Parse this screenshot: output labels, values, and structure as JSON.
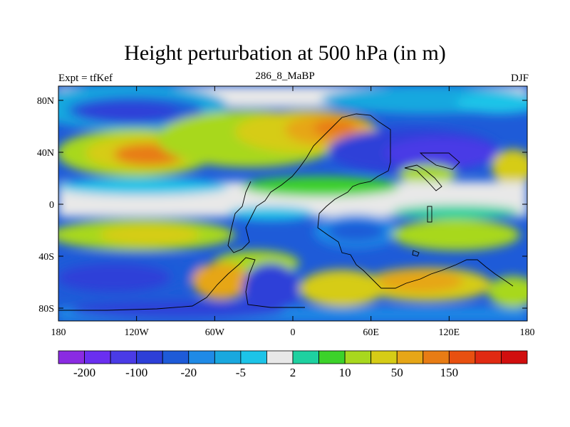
{
  "title": "Height perturbation at 500 hPa (in m)",
  "subtitle_left": "Expt = tfKef",
  "subtitle_center": "286_8_MaBP",
  "subtitle_right": "DJF",
  "map": {
    "lon_ticks": [
      "180",
      "120W",
      "60W",
      "0",
      "60E",
      "120E",
      "180"
    ],
    "lat_ticks": [
      "80N",
      "40N",
      "0",
      "40S",
      "80S"
    ]
  },
  "colorbar": {
    "colors": [
      "#8a2be2",
      "#6a2ff0",
      "#4a3be6",
      "#2d3fd8",
      "#1e5bd8",
      "#1f8ae6",
      "#19a8df",
      "#1cc4e8",
      "#e8e8e8",
      "#1ed1a0",
      "#3cd22a",
      "#a8d81e",
      "#d6cc16",
      "#e6a617",
      "#e87c14",
      "#e85010",
      "#e02a12",
      "#d10e0e"
    ],
    "labels": [
      "-200",
      "-100",
      "-20",
      "-5",
      "2",
      "10",
      "50",
      "150"
    ]
  },
  "colors": {
    "background": "#ffffff",
    "neutral": "#e8e8e8",
    "coastline": "#000000"
  }
}
